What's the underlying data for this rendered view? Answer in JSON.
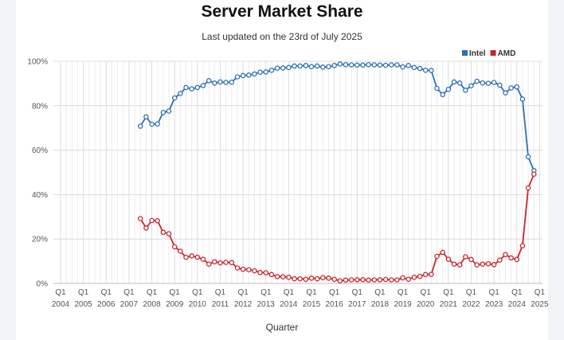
{
  "chart_data": {
    "type": "line",
    "title": "Server Market Share",
    "subtitle": "Last updated on the 23rd of July 2025",
    "xlabel": "Quarter",
    "ylabel": "",
    "ylim": [
      0,
      100
    ],
    "y_ticks": [
      "0%",
      "20%",
      "40%",
      "60%",
      "80%",
      "100%"
    ],
    "x_tick_quarter_label": "Q1",
    "x_tick_years": [
      "2004",
      "2005",
      "2006",
      "2007",
      "2008",
      "2009",
      "2010",
      "2011",
      "2012",
      "2013",
      "2014",
      "2015",
      "2016",
      "2017",
      "2018",
      "2019",
      "2020",
      "2021",
      "2022",
      "2023",
      "2024",
      "2025"
    ],
    "x_range": [
      "2004 Q1",
      "2025 Q1"
    ],
    "grid": true,
    "legend_position": "top-right",
    "series": [
      {
        "name": "Intel",
        "color": "#2f6fb5",
        "points": [
          [
            "2007 Q3",
            70.8
          ],
          [
            "2007 Q4",
            75.0
          ],
          [
            "2008 Q1",
            71.7
          ],
          [
            "2008 Q2",
            71.8
          ],
          [
            "2008 Q3",
            77.0
          ],
          [
            "2008 Q4",
            77.6
          ],
          [
            "2009 Q1",
            83.5
          ],
          [
            "2009 Q2",
            85.5
          ],
          [
            "2009 Q3",
            88.2
          ],
          [
            "2009 Q4",
            87.6
          ],
          [
            "2010 Q1",
            88.2
          ],
          [
            "2010 Q2",
            89.1
          ],
          [
            "2010 Q3",
            91.3
          ],
          [
            "2010 Q4",
            90.2
          ],
          [
            "2011 Q1",
            90.7
          ],
          [
            "2011 Q2",
            90.5
          ],
          [
            "2011 Q3",
            90.6
          ],
          [
            "2011 Q4",
            93.0
          ],
          [
            "2012 Q1",
            93.6
          ],
          [
            "2012 Q2",
            93.8
          ],
          [
            "2012 Q3",
            94.3
          ],
          [
            "2012 Q4",
            95.1
          ],
          [
            "2013 Q1",
            95.2
          ],
          [
            "2013 Q2",
            96.0
          ],
          [
            "2013 Q3",
            96.9
          ],
          [
            "2013 Q4",
            97.0
          ],
          [
            "2014 Q1",
            97.2
          ],
          [
            "2014 Q2",
            97.9
          ],
          [
            "2014 Q3",
            97.9
          ],
          [
            "2014 Q4",
            98.1
          ],
          [
            "2015 Q1",
            97.6
          ],
          [
            "2015 Q2",
            97.9
          ],
          [
            "2015 Q3",
            97.4
          ],
          [
            "2015 Q4",
            97.6
          ],
          [
            "2016 Q1",
            98.1
          ],
          [
            "2016 Q2",
            98.8
          ],
          [
            "2016 Q3",
            98.5
          ],
          [
            "2016 Q4",
            98.4
          ],
          [
            "2017 Q1",
            98.3
          ],
          [
            "2017 Q2",
            98.3
          ],
          [
            "2017 Q3",
            98.5
          ],
          [
            "2017 Q4",
            98.4
          ],
          [
            "2018 Q1",
            98.3
          ],
          [
            "2018 Q2",
            98.2
          ],
          [
            "2018 Q3",
            98.4
          ],
          [
            "2018 Q4",
            98.4
          ],
          [
            "2019 Q1",
            97.5
          ],
          [
            "2019 Q2",
            98.1
          ],
          [
            "2019 Q3",
            97.2
          ],
          [
            "2019 Q4",
            96.8
          ],
          [
            "2020 Q1",
            96.0
          ],
          [
            "2020 Q2",
            95.9
          ],
          [
            "2020 Q3",
            87.8
          ],
          [
            "2020 Q4",
            85.0
          ],
          [
            "2021 Q1",
            87.4
          ],
          [
            "2021 Q2",
            90.7
          ],
          [
            "2021 Q3",
            90.2
          ],
          [
            "2021 Q4",
            87.0
          ],
          [
            "2022 Q1",
            89.0
          ],
          [
            "2022 Q2",
            91.0
          ],
          [
            "2022 Q3",
            90.3
          ],
          [
            "2022 Q4",
            90.1
          ],
          [
            "2023 Q1",
            90.5
          ],
          [
            "2023 Q2",
            89.3
          ],
          [
            "2023 Q3",
            85.8
          ],
          [
            "2023 Q4",
            88.0
          ],
          [
            "2024 Q1",
            88.5
          ],
          [
            "2024 Q2",
            83.0
          ],
          [
            "2024 Q3",
            57.0
          ],
          [
            "2024 Q4",
            50.8
          ]
        ]
      },
      {
        "name": "AMD",
        "color": "#c9252c",
        "points": [
          [
            "2007 Q3",
            29.2
          ],
          [
            "2007 Q4",
            25.0
          ],
          [
            "2008 Q1",
            28.3
          ],
          [
            "2008 Q2",
            28.2
          ],
          [
            "2008 Q3",
            23.0
          ],
          [
            "2008 Q4",
            22.4
          ],
          [
            "2009 Q1",
            16.5
          ],
          [
            "2009 Q2",
            14.5
          ],
          [
            "2009 Q3",
            11.8
          ],
          [
            "2009 Q4",
            12.4
          ],
          [
            "2010 Q1",
            11.8
          ],
          [
            "2010 Q2",
            10.9
          ],
          [
            "2010 Q3",
            8.7
          ],
          [
            "2010 Q4",
            9.8
          ],
          [
            "2011 Q1",
            9.3
          ],
          [
            "2011 Q2",
            9.5
          ],
          [
            "2011 Q3",
            9.4
          ],
          [
            "2011 Q4",
            7.0
          ],
          [
            "2012 Q1",
            6.4
          ],
          [
            "2012 Q2",
            6.2
          ],
          [
            "2012 Q3",
            5.7
          ],
          [
            "2012 Q4",
            4.9
          ],
          [
            "2013 Q1",
            4.8
          ],
          [
            "2013 Q2",
            4.0
          ],
          [
            "2013 Q3",
            3.1
          ],
          [
            "2013 Q4",
            3.0
          ],
          [
            "2014 Q1",
            2.8
          ],
          [
            "2014 Q2",
            2.1
          ],
          [
            "2014 Q3",
            2.1
          ],
          [
            "2014 Q4",
            1.9
          ],
          [
            "2015 Q1",
            2.4
          ],
          [
            "2015 Q2",
            2.1
          ],
          [
            "2015 Q3",
            2.6
          ],
          [
            "2015 Q4",
            2.4
          ],
          [
            "2016 Q1",
            1.9
          ],
          [
            "2016 Q2",
            1.2
          ],
          [
            "2016 Q3",
            1.5
          ],
          [
            "2016 Q4",
            1.6
          ],
          [
            "2017 Q1",
            1.7
          ],
          [
            "2017 Q2",
            1.7
          ],
          [
            "2017 Q3",
            1.5
          ],
          [
            "2017 Q4",
            1.6
          ],
          [
            "2018 Q1",
            1.7
          ],
          [
            "2018 Q2",
            1.8
          ],
          [
            "2018 Q3",
            1.6
          ],
          [
            "2018 Q4",
            1.6
          ],
          [
            "2019 Q1",
            2.5
          ],
          [
            "2019 Q2",
            1.9
          ],
          [
            "2019 Q3",
            2.8
          ],
          [
            "2019 Q4",
            3.2
          ],
          [
            "2020 Q1",
            4.0
          ],
          [
            "2020 Q2",
            4.1
          ],
          [
            "2020 Q3",
            12.2
          ],
          [
            "2020 Q4",
            14.0
          ],
          [
            "2021 Q1",
            10.9
          ],
          [
            "2021 Q2",
            8.7
          ],
          [
            "2021 Q3",
            8.4
          ],
          [
            "2021 Q4",
            12.0
          ],
          [
            "2022 Q1",
            10.8
          ],
          [
            "2022 Q2",
            8.4
          ],
          [
            "2022 Q3",
            8.7
          ],
          [
            "2022 Q4",
            8.9
          ],
          [
            "2023 Q1",
            8.5
          ],
          [
            "2023 Q2",
            10.5
          ],
          [
            "2023 Q3",
            13.0
          ],
          [
            "2023 Q4",
            11.5
          ],
          [
            "2024 Q1",
            10.8
          ],
          [
            "2024 Q2",
            17.0
          ],
          [
            "2024 Q3",
            43.0
          ],
          [
            "2024 Q4",
            49.2
          ]
        ]
      }
    ]
  }
}
